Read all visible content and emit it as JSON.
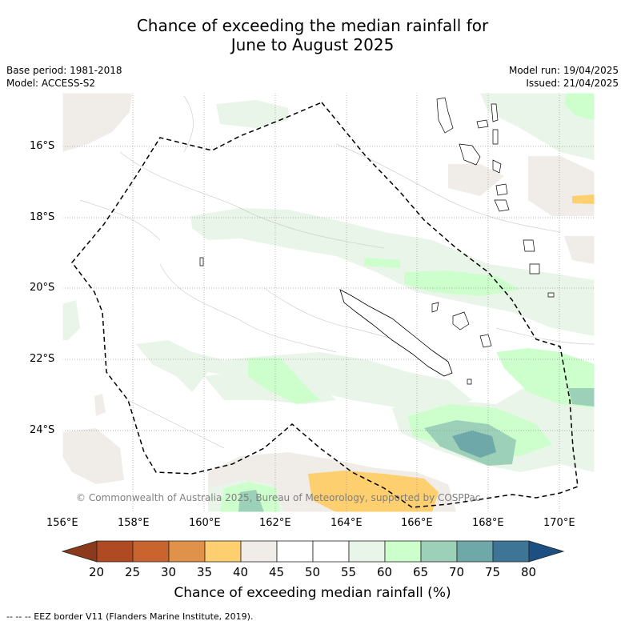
{
  "title": {
    "line1": "Chance of exceeding the median rainfall for",
    "line2": "June to August 2025"
  },
  "info_left": {
    "base_period": "Base period: 1981-2018",
    "model": "Model: ACCESS-S2"
  },
  "info_right": {
    "model_run": "Model run: 19/04/2025",
    "issued": "Issued: 21/04/2025"
  },
  "map": {
    "lat_labels": [
      "16°S",
      "18°S",
      "20°S",
      "22°S",
      "24°S"
    ],
    "lon_labels": [
      "156°E",
      "158°E",
      "160°E",
      "162°E",
      "164°E",
      "166°E",
      "168°E",
      "170°E"
    ],
    "copyright": "© Commonwealth of Australia 2025, Bureau of Meteorology, supported by COSPPac",
    "land_color": "#ffffff",
    "eez_line_color": "#000000"
  },
  "colorbar": {
    "ticks": [
      "20",
      "25",
      "30",
      "35",
      "40",
      "45",
      "50",
      "55",
      "60",
      "65",
      "70",
      "75",
      "80"
    ],
    "colors": [
      "#8b3a1c",
      "#b04a23",
      "#c9642f",
      "#e0924a",
      "#fdcf6e",
      "#f0ece8",
      "#ffffff",
      "#ffffff",
      "#e8f5e8",
      "#ccffcc",
      "#9dd0b8",
      "#6fa8a8",
      "#3e7597",
      "#1d4f80"
    ],
    "title": "Chance of exceeding median rainfall (%)"
  },
  "footnote": "--  --  -- EEZ border V11 (Flanders Marine Institute, 2019)."
}
